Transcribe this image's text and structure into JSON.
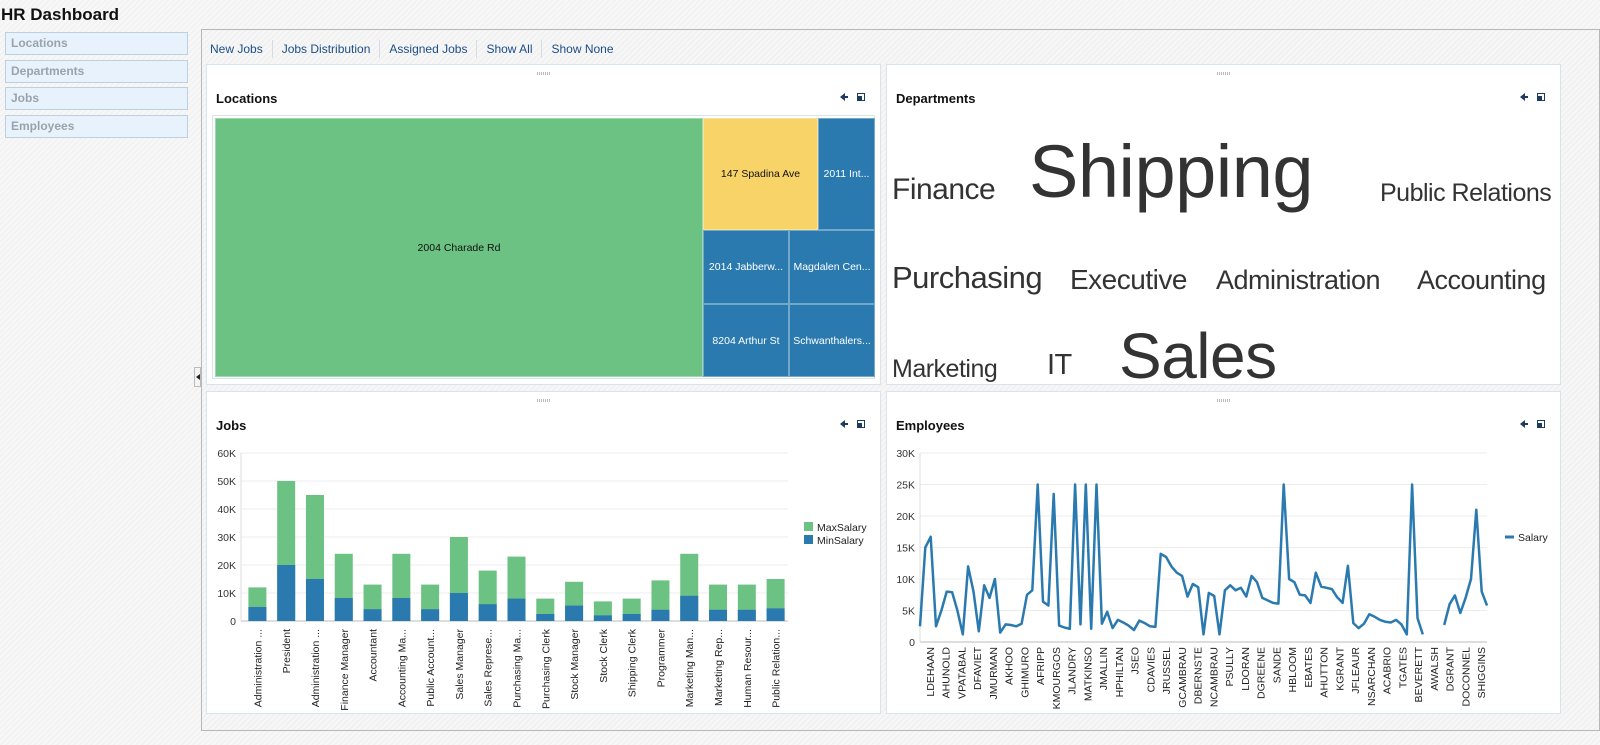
{
  "app": {
    "title": "HR Dashboard"
  },
  "sidebar": {
    "items": [
      {
        "label": "Locations"
      },
      {
        "label": "Departments"
      },
      {
        "label": "Jobs"
      },
      {
        "label": "Employees"
      }
    ]
  },
  "toolbar": {
    "links": [
      {
        "label": "New Jobs"
      },
      {
        "label": "Jobs Distribution"
      },
      {
        "label": "Assigned Jobs"
      },
      {
        "label": "Show All"
      },
      {
        "label": "Show None"
      }
    ]
  },
  "colors": {
    "green": "#6cc283",
    "blue": "#2a7ab0",
    "yellow": "#f8d468",
    "link": "#1b4e88"
  },
  "panels": {
    "locations": {
      "title": "Locations",
      "cells": [
        {
          "label": "2004 Charade Rd",
          "color": "green"
        },
        {
          "label": "147 Spadina Ave",
          "color": "yellow"
        },
        {
          "label": "2011 Int...",
          "color": "blue"
        },
        {
          "label": "2014 Jabberw...",
          "color": "blue"
        },
        {
          "label": "Magdalen Cen...",
          "color": "blue"
        },
        {
          "label": "8204 Arthur St",
          "color": "blue"
        },
        {
          "label": "Schwanthalers...",
          "color": "blue"
        }
      ]
    },
    "departments": {
      "title": "Departments",
      "words": [
        {
          "label": "Finance",
          "size": 30
        },
        {
          "label": "Shipping",
          "size": 72
        },
        {
          "label": "Public Relations",
          "size": 25
        },
        {
          "label": "Purchasing",
          "size": 31
        },
        {
          "label": "Executive",
          "size": 28
        },
        {
          "label": "Administration",
          "size": 27
        },
        {
          "label": "Accounting",
          "size": 27
        },
        {
          "label": "Marketing",
          "size": 25
        },
        {
          "label": "IT",
          "size": 29
        },
        {
          "label": "Sales",
          "size": 62
        }
      ]
    },
    "jobs": {
      "title": "Jobs"
    },
    "employees": {
      "title": "Employees"
    }
  },
  "chart_data": [
    {
      "type": "bar",
      "title": "Jobs",
      "stacked": true,
      "categories": [
        "Administration ...",
        "President",
        "Administration ...",
        "Finance Manager",
        "Accountant",
        "Accounting Ma...",
        "Public Account...",
        "Sales Manager",
        "Sales Represe...",
        "Purchasing Ma...",
        "Purchasing Clerk",
        "Stock Manager",
        "Stock Clerk",
        "Shipping Clerk",
        "Programmer",
        "Marketing Man...",
        "Marketing Rep...",
        "Human Resour...",
        "Public Relation..."
      ],
      "series": [
        {
          "name": "MinSalary",
          "color": "#2a7ab0",
          "values": [
            5000,
            20000,
            15000,
            8200,
            4200,
            8200,
            4200,
            10000,
            6000,
            8000,
            2500,
            5500,
            2000,
            2500,
            4000,
            9000,
            4000,
            4000,
            4500
          ]
        },
        {
          "name": "MaxSalary",
          "color": "#6cc283",
          "values": [
            12000,
            50000,
            45000,
            24000,
            13000,
            24000,
            13000,
            30000,
            18000,
            23000,
            8000,
            14000,
            7000,
            8000,
            14500,
            24000,
            13000,
            13000,
            15000
          ]
        }
      ],
      "ylim": [
        0,
        60000
      ],
      "yticks": [
        "0",
        "10K",
        "20K",
        "30K",
        "40K",
        "50K",
        "60K"
      ],
      "legend": [
        "MaxSalary",
        "MinSalary"
      ],
      "legend_position": "right",
      "grid": true
    },
    {
      "type": "line",
      "title": "Employees",
      "series": [
        {
          "name": "Salary",
          "color": "#2a7ab0"
        }
      ],
      "x_tick_labels": [
        "LDEHAAN",
        "AHUNOLD",
        "VPATABAL",
        "DFAVIET",
        "JMURMAN",
        "AKHOO",
        "GHIMURO",
        "AFRIPP",
        "KMOURGOS",
        "JLANDRY",
        "MATKINSO",
        "JMALLIN",
        "HPHILTAN",
        "JSEO",
        "CDAVIES",
        "JRUSSEL",
        "GCAMBRAU",
        "DBERNSTE",
        "NCAMBRAU",
        "PSULLY",
        "LDORAN",
        "DGREENE",
        "SANDE",
        "HBLOOM",
        "EBATES",
        "AHUTTON",
        "KGRANT",
        "JFLEAUR",
        "NSARCHAN",
        "ACABRIO",
        "TGATES",
        "BEVERETT",
        "AWALSH",
        "DGRANT",
        "DOCONNEL",
        "SHIGGINS"
      ],
      "values": [
        2500,
        15000,
        16700,
        2500,
        5000,
        8000,
        7900,
        5000,
        1200,
        12000,
        8000,
        1700,
        9000,
        7000,
        10000,
        1500,
        2800,
        2700,
        2500,
        2900,
        7500,
        8200,
        25000,
        6400,
        5800,
        23500,
        2600,
        2300,
        2100,
        25000,
        2800,
        25000,
        2100,
        25000,
        2900,
        4800,
        2200,
        3500,
        3100,
        2600,
        1900,
        3400,
        3000,
        2500,
        2400,
        14000,
        13500,
        12000,
        11000,
        10500,
        7200,
        9200,
        8700,
        1200,
        7800,
        7300,
        1200,
        8200,
        9000,
        8200,
        8600,
        7200,
        10500,
        9500,
        7000,
        6600,
        6200,
        6100,
        25000,
        10000,
        9500,
        7500,
        7400,
        6200,
        11000,
        8800,
        8600,
        8400,
        7100,
        6200,
        12100,
        3000,
        2200,
        2900,
        4400,
        4000,
        3500,
        3200,
        3100,
        3500,
        2800,
        1200,
        25000,
        3800,
        1200,
        null,
        3000,
        null,
        2700,
        6000,
        7400,
        4600,
        7000,
        10000,
        21000,
        8000,
        5800
      ],
      "ylim": [
        0,
        30000
      ],
      "yticks": [
        "0",
        "5K",
        "10K",
        "15K",
        "20K",
        "25K",
        "30K"
      ],
      "legend": [
        "Salary"
      ],
      "legend_position": "right",
      "grid": true
    }
  ]
}
